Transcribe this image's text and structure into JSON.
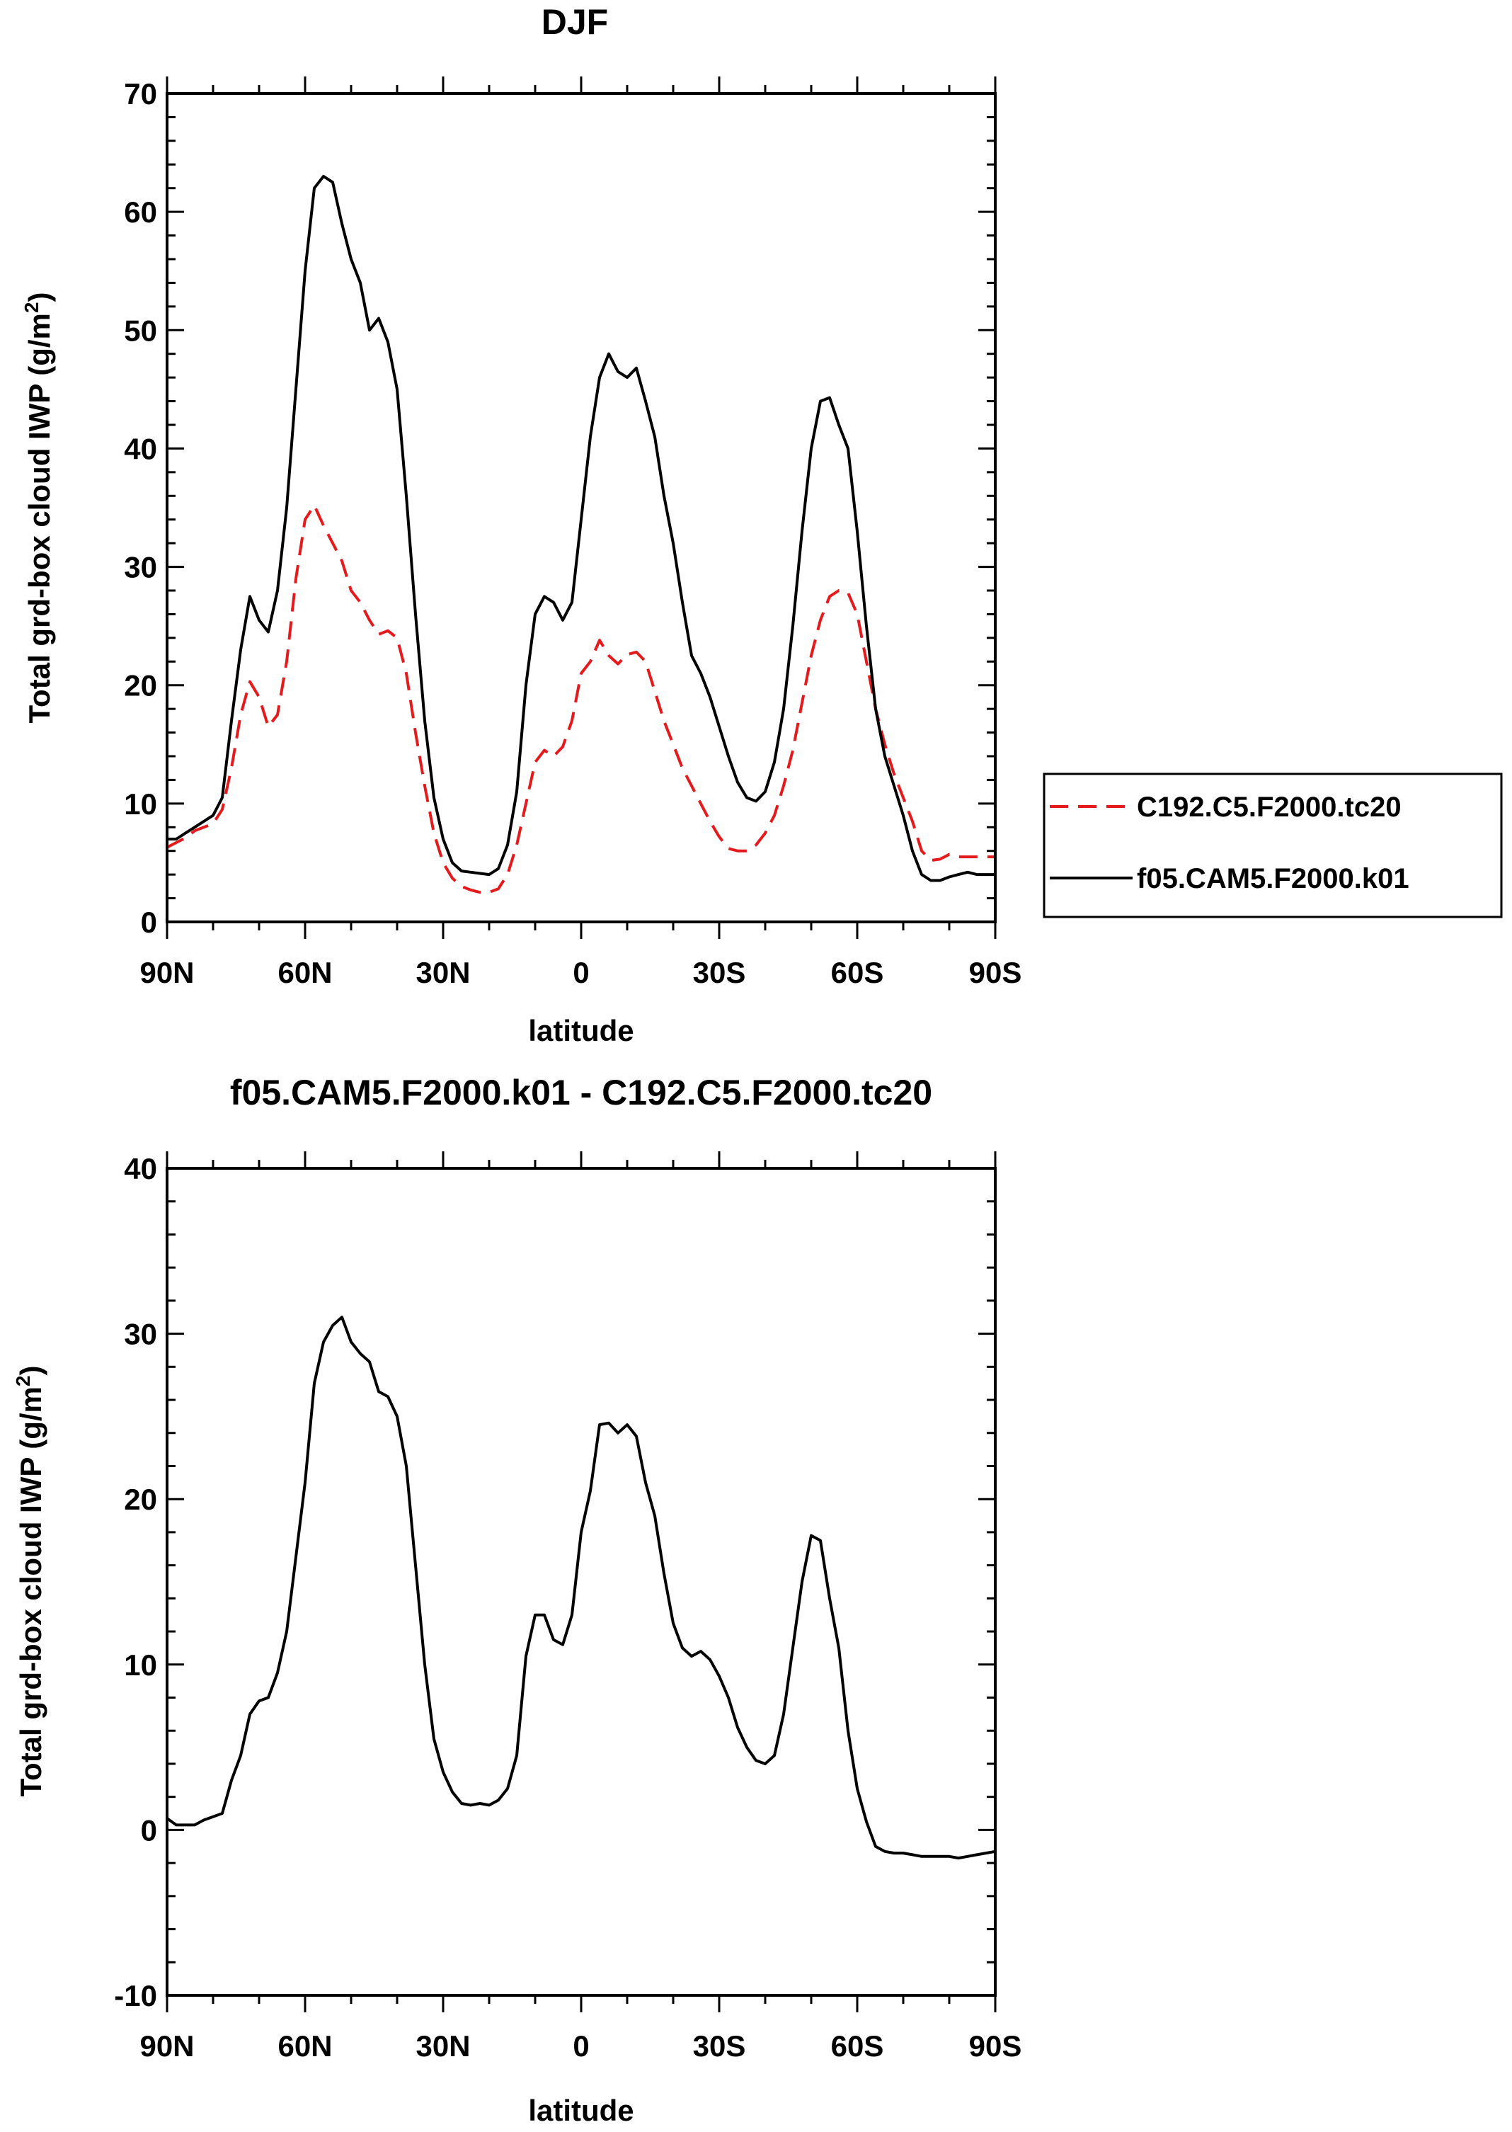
{
  "chart_data": [
    {
      "type": "line",
      "title": "DJF",
      "xlabel": "latitude",
      "ylabel": "Total grd-box cloud IWP (g/m",
      "ylabel_sup": "2",
      "ylabel_end": ")",
      "xlim": [
        90,
        -90
      ],
      "ylim": [
        0,
        70
      ],
      "xticks": [
        90,
        60,
        30,
        0,
        -30,
        -60,
        -90
      ],
      "xtick_labels": [
        "90N",
        "60N",
        "30N",
        "0",
        "30S",
        "60S",
        "90S"
      ],
      "yticks": [
        0,
        10,
        20,
        30,
        40,
        50,
        60,
        70
      ],
      "ytick_labels": [
        "0",
        "10",
        "20",
        "30",
        "40",
        "50",
        "60",
        "70"
      ],
      "x": [
        90,
        88,
        86,
        84,
        82,
        80,
        78,
        76,
        74,
        72,
        70,
        68,
        66,
        64,
        62,
        60,
        58,
        56,
        54,
        52,
        50,
        48,
        46,
        44,
        42,
        40,
        38,
        36,
        34,
        32,
        30,
        28,
        26,
        24,
        22,
        20,
        18,
        16,
        14,
        12,
        10,
        8,
        6,
        4,
        2,
        0,
        -2,
        -4,
        -6,
        -8,
        -10,
        -12,
        -14,
        -16,
        -18,
        -20,
        -22,
        -24,
        -26,
        -28,
        -30,
        -32,
        -34,
        -36,
        -38,
        -40,
        -42,
        -44,
        -46,
        -48,
        -50,
        -52,
        -54,
        -56,
        -58,
        -60,
        -62,
        -64,
        -66,
        -68,
        -70,
        -72,
        -74,
        -76,
        -78,
        -80,
        -82,
        -84,
        -86,
        -88,
        -90
      ],
      "series": [
        {
          "name": "C192.C5.F2000.tc20",
          "color": "#e41a1c",
          "style": "dashed",
          "values": [
            6.3,
            6.7,
            7.1,
            7.7,
            8.0,
            8.3,
            9.5,
            13.0,
            17.5,
            20.3,
            19.0,
            16.5,
            17.5,
            22.0,
            29.0,
            34.0,
            35.2,
            33.5,
            32.0,
            30.5,
            28.0,
            27.0,
            25.5,
            24.3,
            24.6,
            24.0,
            21.0,
            16.0,
            11.5,
            7.5,
            5.0,
            3.7,
            3.0,
            2.7,
            2.5,
            2.5,
            2.8,
            4.0,
            6.5,
            10.0,
            13.5,
            14.5,
            14.0,
            14.8,
            17.0,
            21.0,
            22.0,
            23.8,
            22.5,
            21.8,
            22.6,
            22.8,
            22.0,
            19.5,
            17.0,
            15.0,
            13.0,
            11.5,
            10.0,
            8.5,
            7.2,
            6.2,
            6.0,
            6.0,
            6.5,
            7.5,
            9.0,
            11.5,
            14.5,
            18.5,
            22.5,
            25.5,
            27.5,
            28.0,
            27.8,
            26.0,
            22.0,
            18.0,
            15.0,
            12.5,
            10.5,
            8.5,
            6.0,
            5.2,
            5.3,
            5.7,
            5.5,
            5.5,
            5.5,
            5.5,
            5.5
          ]
        },
        {
          "name": "f05.CAM5.F2000.k01",
          "color": "#000000",
          "style": "solid",
          "values": [
            7.0,
            7.0,
            7.5,
            8.0,
            8.5,
            9.0,
            10.5,
            17.0,
            23.0,
            27.5,
            25.5,
            24.5,
            28.0,
            35.0,
            45.0,
            55.0,
            62.0,
            63.0,
            62.5,
            59.0,
            56.0,
            54.0,
            50.0,
            51.0,
            49.0,
            45.0,
            36.0,
            26.0,
            17.0,
            10.5,
            7.0,
            5.0,
            4.3,
            4.2,
            4.1,
            4.0,
            4.5,
            6.5,
            11.0,
            20.0,
            26.0,
            27.5,
            27.0,
            25.5,
            27.0,
            34.0,
            41.0,
            46.0,
            48.0,
            46.5,
            46.0,
            46.8,
            44.0,
            41.0,
            36.0,
            32.0,
            27.0,
            22.5,
            21.0,
            19.0,
            16.5,
            14.0,
            11.8,
            10.5,
            10.2,
            11.0,
            13.5,
            18.0,
            25.0,
            33.0,
            40.0,
            44.0,
            44.3,
            42.0,
            40.0,
            33.0,
            25.0,
            18.0,
            14.0,
            11.5,
            9.0,
            6.0,
            4.0,
            3.5,
            3.5,
            3.8,
            4.0,
            4.2,
            4.0,
            4.0,
            4.0
          ]
        }
      ],
      "legend_position": "right"
    },
    {
      "type": "line",
      "title": "f05.CAM5.F2000.k01 - C192.C5.F2000.tc20",
      "xlabel": "latitude",
      "ylabel": "Total grd-box cloud IWP (g/m",
      "ylabel_sup": "2",
      "ylabel_end": ")",
      "xlim": [
        90,
        -90
      ],
      "ylim": [
        -10,
        40
      ],
      "xticks": [
        90,
        60,
        30,
        0,
        -30,
        -60,
        -90
      ],
      "xtick_labels": [
        "90N",
        "60N",
        "30N",
        "0",
        "30S",
        "60S",
        "90S"
      ],
      "yticks": [
        -10,
        0,
        10,
        20,
        30,
        40
      ],
      "ytick_labels": [
        "-10",
        "0",
        "10",
        "20",
        "30",
        "40"
      ],
      "x": [
        90,
        88,
        86,
        84,
        82,
        80,
        78,
        76,
        74,
        72,
        70,
        68,
        66,
        64,
        62,
        60,
        58,
        56,
        54,
        52,
        50,
        48,
        46,
        44,
        42,
        40,
        38,
        36,
        34,
        32,
        30,
        28,
        26,
        24,
        22,
        20,
        18,
        16,
        14,
        12,
        10,
        8,
        6,
        4,
        2,
        0,
        -2,
        -4,
        -6,
        -8,
        -10,
        -12,
        -14,
        -16,
        -18,
        -20,
        -22,
        -24,
        -26,
        -28,
        -30,
        -32,
        -34,
        -36,
        -38,
        -40,
        -42,
        -44,
        -46,
        -48,
        -50,
        -52,
        -54,
        -56,
        -58,
        -60,
        -62,
        -64,
        -66,
        -68,
        -70,
        -72,
        -74,
        -76,
        -78,
        -80,
        -82,
        -84,
        -86,
        -88,
        -90
      ],
      "series": [
        {
          "name": "f05.CAM5.F2000.k01 - C192.C5.F2000.tc20",
          "color": "#000000",
          "style": "solid",
          "values": [
            0.7,
            0.3,
            0.3,
            0.3,
            0.6,
            0.8,
            1.0,
            3.0,
            4.5,
            7.0,
            7.8,
            8.0,
            9.5,
            12.0,
            16.5,
            21.0,
            27.0,
            29.5,
            30.5,
            31.0,
            29.5,
            28.8,
            28.3,
            26.5,
            26.2,
            25.0,
            22.0,
            16.0,
            10.0,
            5.5,
            3.5,
            2.3,
            1.6,
            1.5,
            1.6,
            1.5,
            1.8,
            2.5,
            4.5,
            10.5,
            13.0,
            13.0,
            11.5,
            11.2,
            13.0,
            18.0,
            20.5,
            24.5,
            24.6,
            24.0,
            24.5,
            23.8,
            21.0,
            19.0,
            15.5,
            12.5,
            11.0,
            10.5,
            10.8,
            10.3,
            9.3,
            8.0,
            6.2,
            5.0,
            4.2,
            4.0,
            4.5,
            7.0,
            11.0,
            15.0,
            17.8,
            17.5,
            14.0,
            11.0,
            6.0,
            2.5,
            0.5,
            -1.0,
            -1.3,
            -1.4,
            -1.4,
            -1.5,
            -1.6,
            -1.6,
            -1.6,
            -1.6,
            -1.7,
            -1.6,
            -1.5,
            -1.4,
            -1.3
          ]
        }
      ]
    }
  ]
}
